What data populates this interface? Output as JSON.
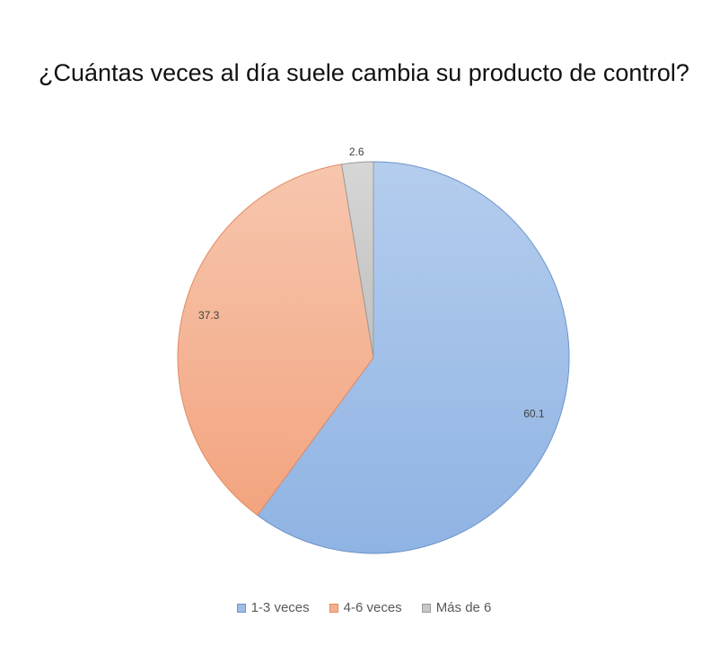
{
  "chart_data": {
    "type": "pie",
    "title": "¿Cuántas veces al día suele cambia su producto de control?",
    "categories": [
      "1-3 veces",
      "4-6 veces",
      "Más de 6"
    ],
    "values": [
      60.1,
      37.3,
      2.6
    ],
    "data_labels": [
      "60.1",
      "37.3",
      "2.6"
    ],
    "colors": [
      "#9dbde6",
      "#f4b08f",
      "#c8c8c8"
    ],
    "stroke_colors": [
      "#6d93c9",
      "#e28a63",
      "#9a9a9a"
    ],
    "legend_position": "bottom",
    "start_angle": "12 o'clock, clockwise"
  }
}
